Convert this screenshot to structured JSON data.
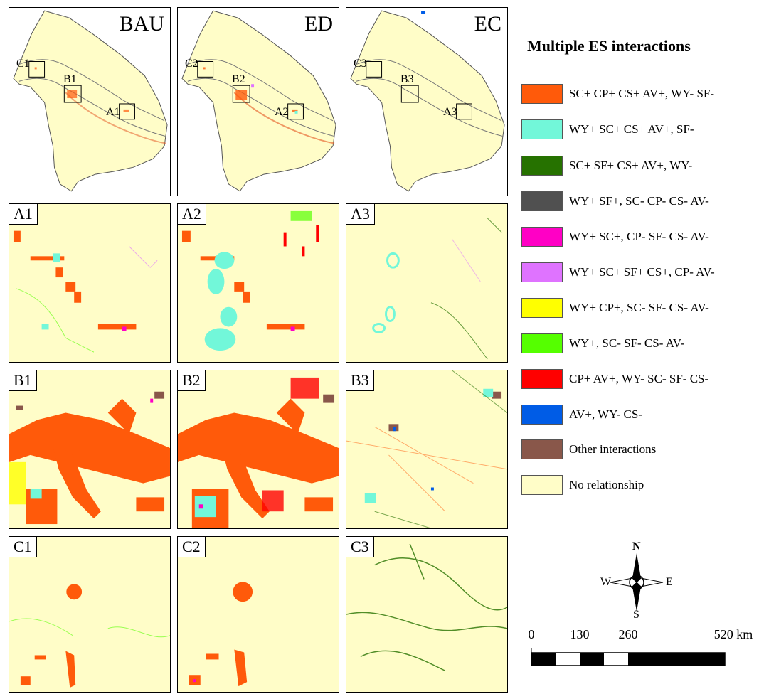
{
  "scenarios": [
    {
      "key": "BAU",
      "label": "BAU",
      "insets": [
        "C1",
        "B1",
        "A1"
      ]
    },
    {
      "key": "ED",
      "label": "ED",
      "insets": [
        "C2",
        "B2",
        "A2"
      ]
    },
    {
      "key": "EC",
      "label": "EC",
      "insets": [
        "C3",
        "B3",
        "A3"
      ]
    }
  ],
  "panel_labels": {
    "A": [
      "A1",
      "A2",
      "A3"
    ],
    "B": [
      "B1",
      "B2",
      "B3"
    ],
    "C": [
      "C1",
      "C2",
      "C3"
    ]
  },
  "legend": {
    "title": "Multiple ES interactions",
    "items": [
      {
        "label": "SC+  CP+  CS+  AV+, WY-  SF-",
        "color": "#ff5a0a"
      },
      {
        "label": "WY+  SC+  CS+  AV+, SF-",
        "color": "#72f7d9"
      },
      {
        "label": "SC+  SF+  CS+  AV+, WY-",
        "color": "#267200"
      },
      {
        "label": "WY+  SF+, SC-  CP-  CS-  AV-",
        "color": "#505050"
      },
      {
        "label": "WY+  SC+, CP-  SF-  CS-  AV-",
        "color": "#ff00c5"
      },
      {
        "label": "WY+  SC+  SF+  CS+, CP-  AV-",
        "color": "#df73ff"
      },
      {
        "label": "WY+  CP+, SC-  SF-  CS-  AV-",
        "color": "#ffff00"
      },
      {
        "label": "WY+, SC-  SF-  CS-  AV-",
        "color": "#55ff00"
      },
      {
        "label": "CP+  AV+, WY-  SC-  SF-  CS-",
        "color": "#ff0000"
      },
      {
        "label": "AV+, WY-  CS-",
        "color": "#005ce6"
      },
      {
        "label": "Other interactions",
        "color": "#89574a"
      },
      {
        "label": "No relationship",
        "color": "#fffdc8"
      }
    ]
  },
  "compass": {
    "n": "N",
    "s": "S",
    "e": "E",
    "w": "W"
  },
  "scale": {
    "ticks": [
      "0",
      "130",
      "260",
      "520 km"
    ]
  }
}
